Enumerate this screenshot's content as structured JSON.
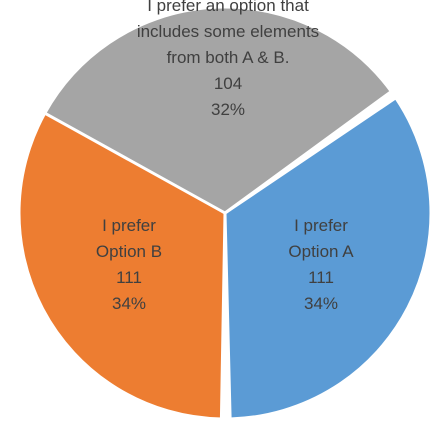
{
  "chart_data": {
    "type": "pie",
    "title": "",
    "slices": [
      {
        "label_lines": [
          "I prefer",
          "Option A"
        ],
        "value": 111,
        "percent_label": "34%",
        "color": "#5B9BD5"
      },
      {
        "label_lines": [
          "I prefer",
          "Option B"
        ],
        "value": 111,
        "percent_label": "34%",
        "color": "#ED7D31"
      },
      {
        "label_lines": [
          "I prefer an option that",
          "includes some elements",
          "from both A & B."
        ],
        "value": 104,
        "percent_label": "32%",
        "color": "#A5A5A5"
      }
    ],
    "slice_border_color": "#FFFFFF",
    "legend": "none",
    "data_labels": "inside"
  }
}
